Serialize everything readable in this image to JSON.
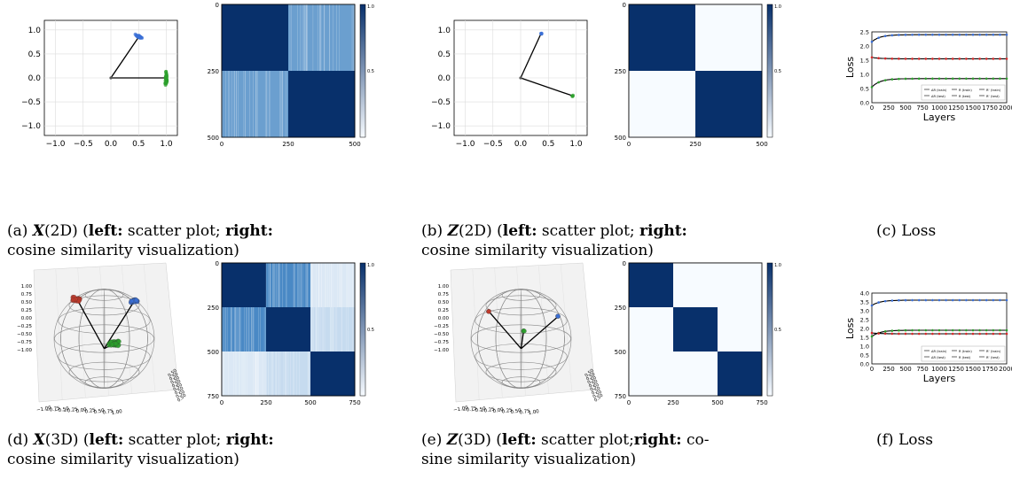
{
  "panels": [
    {
      "label": "(a)",
      "sym": "X",
      "dim": "(2D)",
      "lead": "(",
      "left_word": "left:",
      "left_text": "scatter plot;",
      "right_word": "right:",
      "line2": "cosine similarity visualization)"
    },
    {
      "label": "(b)",
      "sym": "Z",
      "dim": "(2D)",
      "lead": "(",
      "left_word": "left:",
      "left_text": "scatter plot;",
      "right_word": "right:",
      "line2": "cosine similarity visualization)"
    },
    {
      "label": "(c)",
      "text": "Loss"
    },
    {
      "label": "(d)",
      "sym": "X",
      "dim": "(3D)",
      "lead": "(",
      "left_word": "left:",
      "left_text": "scatter plot;",
      "right_word": "right:",
      "line2": "cosine similarity visualization)"
    },
    {
      "label": "(e)",
      "sym": "Z",
      "dim": "(3D)",
      "lead": "(",
      "left_word": "left:",
      "left_text": "scatter plot;",
      "right_word": "right:",
      "right_tail": "co-",
      "line2": "sine similarity visualization)"
    },
    {
      "label": "(f)",
      "text": "Loss"
    }
  ],
  "colors": {
    "heat_dark": "#08306b",
    "heat_light": "#f7fbff",
    "blue": "#3b6fd6",
    "green": "#2ca02c",
    "red": "#c0392b",
    "navy": "#08306b",
    "loss_red": "#d62728"
  },
  "chart_data": [
    {
      "id": "a-scatter",
      "type": "scatter",
      "xlim": [
        -1.2,
        1.2
      ],
      "ylim": [
        -1.2,
        1.2
      ],
      "xticks": [
        "−1.0",
        "−0.5",
        "0.0",
        "0.5",
        "1.0"
      ],
      "yticks": [
        "1.0",
        "0.5",
        "0.0",
        "−0.5",
        "−1.0"
      ],
      "grid": true,
      "series": [
        {
          "color": "blue",
          "center": [
            0.5,
            0.85
          ],
          "spread": 0.1
        },
        {
          "color": "green",
          "center": [
            0.98,
            0.0
          ],
          "spread": 0.2
        }
      ]
    },
    {
      "id": "a-heatmap",
      "type": "heatmap",
      "xticks": [
        "0",
        "250",
        "500"
      ],
      "yticks": [
        "0",
        "250",
        "500"
      ],
      "colorbar": [
        "1.0",
        "0.5"
      ],
      "blocks": 2,
      "off_diagonal": 0.75
    },
    {
      "id": "b-scatter",
      "type": "scatter",
      "xlim": [
        -1.2,
        1.2
      ],
      "ylim": [
        -1.2,
        1.2
      ],
      "xticks": [
        "−1.0",
        "−0.5",
        "0.0",
        "0.5",
        "1.0"
      ],
      "yticks": [
        "1.0",
        "0.5",
        "0.0",
        "−0.5",
        "−1.0"
      ],
      "grid": true,
      "series": [
        {
          "color": "blue",
          "center": [
            0.37,
            0.93
          ],
          "spread": 0.0
        },
        {
          "color": "green",
          "center": [
            0.93,
            -0.37
          ],
          "spread": 0.0
        }
      ]
    },
    {
      "id": "b-heatmap",
      "type": "heatmap",
      "xticks": [
        "0",
        "250",
        "500"
      ],
      "yticks": [
        "0",
        "250",
        "500"
      ],
      "colorbar": [
        "1.0",
        "0.5"
      ],
      "blocks": 2,
      "off_diagonal": 0.02
    },
    {
      "id": "c-loss",
      "type": "line",
      "ylabel": "Loss",
      "xlabel": "Layers",
      "xlim": [
        0,
        2000
      ],
      "ylim": [
        0,
        2.5
      ],
      "xticks": [
        "0",
        "250",
        "500",
        "750",
        "1000",
        "1250",
        "1500",
        "1750",
        "2000"
      ],
      "yticks": [
        "2.5",
        "2.0",
        "1.5",
        "1.0",
        "0.5",
        "0.0"
      ],
      "series": [
        {
          "name": "ΔR (train)",
          "start": 0.55,
          "end": 0.85,
          "color": "green"
        },
        {
          "name": "R (train)",
          "start": 2.15,
          "end": 2.4,
          "color": "blue"
        },
        {
          "name": "Rᶜ (train)",
          "start": 1.6,
          "end": 1.55,
          "color": "loss_red"
        }
      ],
      "legend": [
        "ΔR (train)",
        "R (train)",
        "Rᶜ (train)",
        "ΔR (test)",
        "R (test)",
        "Rᶜ (test)"
      ]
    },
    {
      "id": "d-sphere",
      "type": "scatter",
      "xticks": [
        "−1.00",
        "−0.75",
        "−0.50",
        "−0.25",
        "0.00",
        "0.25",
        "0.50",
        "0.75",
        "1.00"
      ],
      "zticks": [
        "1.00",
        "0.75",
        "0.50",
        "0.25",
        "0.00",
        "−0.25",
        "−0.50",
        "−0.75",
        "−1.00"
      ],
      "clusters": [
        "red",
        "blue",
        "green"
      ]
    },
    {
      "id": "d-heatmap",
      "type": "heatmap",
      "xticks": [
        "0",
        "250",
        "500",
        "750"
      ],
      "yticks": [
        "0",
        "250",
        "500",
        "750"
      ],
      "colorbar": [
        "1.0",
        "0.5"
      ],
      "blocks": 3
    },
    {
      "id": "e-sphere",
      "type": "scatter",
      "xticks": [
        "−1.00",
        "−0.75",
        "−0.50",
        "−0.25",
        "0.00",
        "0.25",
        "0.50",
        "0.75",
        "1.00"
      ],
      "zticks": [
        "1.00",
        "0.75",
        "0.50",
        "0.25",
        "0.00",
        "−0.25",
        "−0.50",
        "−0.75",
        "−1.00"
      ],
      "clusters": [
        "red",
        "blue",
        "green"
      ]
    },
    {
      "id": "e-heatmap",
      "type": "heatmap",
      "xticks": [
        "0",
        "250",
        "500",
        "750"
      ],
      "yticks": [
        "0",
        "250",
        "500",
        "750"
      ],
      "colorbar": [
        "1.0",
        "0.5"
      ],
      "blocks": 3
    },
    {
      "id": "f-loss",
      "type": "line",
      "ylabel": "Loss",
      "xlabel": "Layers",
      "xlim": [
        0,
        2000
      ],
      "ylim": [
        0,
        4.0
      ],
      "xticks": [
        "0",
        "250",
        "500",
        "750",
        "1000",
        "1250",
        "1500",
        "1750",
        "2000"
      ],
      "yticks": [
        "4.0",
        "3.5",
        "3.0",
        "2.5",
        "2.0",
        "1.5",
        "1.0",
        "0.5",
        "0.0"
      ],
      "series": [
        {
          "name": "ΔR (train)",
          "start": 1.55,
          "end": 1.9,
          "color": "green"
        },
        {
          "name": "R (train)",
          "start": 3.3,
          "end": 3.6,
          "color": "blue"
        },
        {
          "name": "Rᶜ (train)",
          "start": 1.75,
          "end": 1.7,
          "color": "loss_red"
        }
      ],
      "legend": [
        "ΔR (train)",
        "R (train)",
        "Rᶜ (train)",
        "ΔR (test)",
        "R (test)",
        "Rᶜ (test)"
      ]
    }
  ]
}
